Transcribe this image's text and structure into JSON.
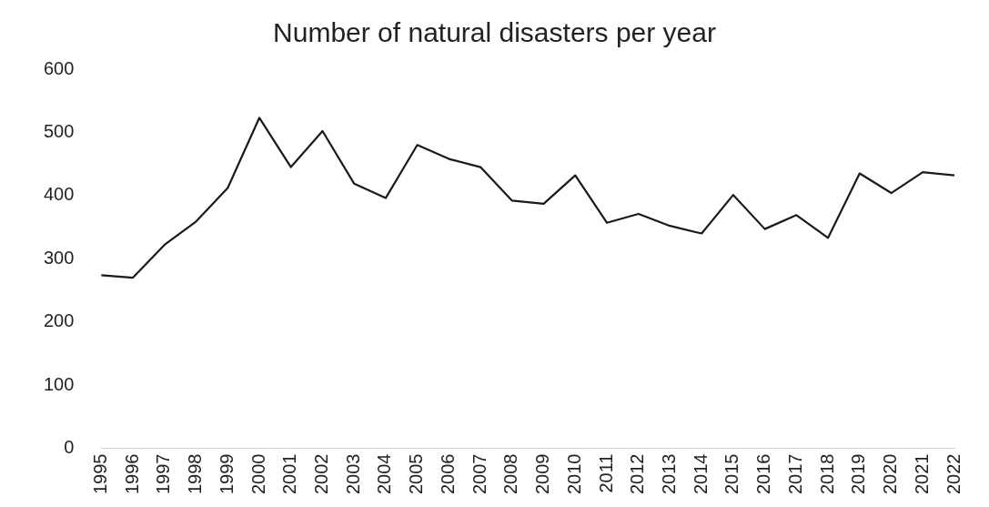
{
  "chart_data": {
    "type": "line",
    "title": "Number of natural disasters per year",
    "categories": [
      "1995",
      "1996",
      "1997",
      "1998",
      "1999",
      "2000",
      "2001",
      "2002",
      "2003",
      "2004",
      "2005",
      "2006",
      "2007",
      "2008",
      "2009",
      "2010",
      "2011",
      "2012",
      "2013",
      "2014",
      "2015",
      "2016",
      "2017",
      "2018",
      "2019",
      "2020",
      "2021",
      "2022"
    ],
    "series": [
      {
        "color": "#1a1a1a",
        "values": [
          274,
          270,
          322,
          359,
          412,
          523,
          445,
          502,
          419,
          396,
          480,
          458,
          445,
          392,
          387,
          432,
          357,
          371,
          352,
          340,
          401,
          347,
          369,
          333,
          435,
          404,
          437,
          432
        ]
      }
    ],
    "ylim": [
      0,
      600
    ],
    "yticks": [
      0,
      100,
      200,
      300,
      400,
      500,
      600
    ],
    "grid": false,
    "legend": false,
    "marker": "none",
    "line_style": "solid"
  }
}
